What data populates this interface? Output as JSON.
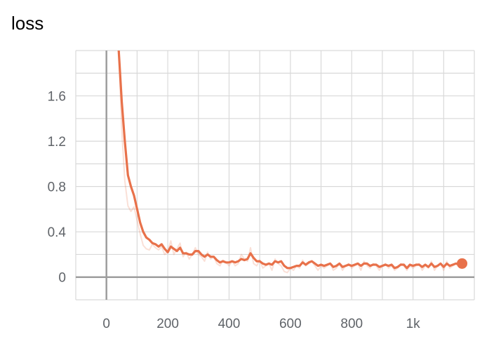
{
  "chart_data": {
    "type": "line",
    "title": "loss",
    "xlabel": "",
    "ylabel": "",
    "xlim": [
      -100,
      1200
    ],
    "ylim": [
      -0.2,
      2.0
    ],
    "x_ticks": [
      0,
      200,
      400,
      600,
      800,
      1000
    ],
    "x_tick_labels": [
      "0",
      "200",
      "400",
      "600",
      "800",
      "1k"
    ],
    "y_ticks": [
      0,
      0.4,
      0.8,
      1.2,
      1.6
    ],
    "y_tick_labels": [
      "0",
      "0.4",
      "0.8",
      "1.2",
      "1.6"
    ],
    "grid": true,
    "legend": "none",
    "series": [
      {
        "role": "raw",
        "color": "#e8714a",
        "x": [
          40,
          50,
          60,
          70,
          80,
          90,
          100,
          110,
          120,
          130,
          140,
          150,
          160,
          170,
          180,
          190,
          200,
          210,
          220,
          230,
          240,
          250,
          260,
          270,
          280,
          290,
          300,
          310,
          320,
          330,
          340,
          350,
          360,
          370,
          380,
          390,
          400,
          410,
          420,
          430,
          440,
          450,
          460,
          470,
          480,
          490,
          500,
          510,
          520,
          530,
          540,
          550,
          560,
          570,
          580,
          590,
          600,
          610,
          620,
          630,
          640,
          650,
          660,
          670,
          680,
          690,
          700,
          710,
          720,
          730,
          740,
          750,
          760,
          770,
          780,
          790,
          800,
          810,
          820,
          830,
          840,
          850,
          860,
          870,
          880,
          890,
          900,
          910,
          920,
          930,
          940,
          950,
          960,
          970,
          980,
          990,
          1000,
          1010,
          1020,
          1030,
          1040,
          1050,
          1060,
          1070,
          1080,
          1090,
          1100,
          1110,
          1120,
          1130,
          1140,
          1150,
          1160
        ],
        "y": [
          2.0,
          1.3,
          0.85,
          0.63,
          0.58,
          0.62,
          0.5,
          0.38,
          0.28,
          0.25,
          0.24,
          0.29,
          0.26,
          0.24,
          0.27,
          0.2,
          0.23,
          0.32,
          0.2,
          0.25,
          0.3,
          0.18,
          0.22,
          0.16,
          0.2,
          0.26,
          0.2,
          0.18,
          0.14,
          0.22,
          0.16,
          0.18,
          0.12,
          0.1,
          0.15,
          0.13,
          0.1,
          0.14,
          0.1,
          0.12,
          0.2,
          0.16,
          0.14,
          0.26,
          0.12,
          0.1,
          0.15,
          0.08,
          0.1,
          0.12,
          0.06,
          0.16,
          0.12,
          0.1,
          0.05,
          0.04,
          0.08,
          0.06,
          0.1,
          0.08,
          0.15,
          0.1,
          0.12,
          0.14,
          0.1,
          0.06,
          0.1,
          0.08,
          0.1,
          0.12,
          0.06,
          0.08,
          0.12,
          0.06,
          0.1,
          0.12,
          0.08,
          0.1,
          0.12,
          0.06,
          0.14,
          0.1,
          0.08,
          0.12,
          0.1,
          0.06,
          0.1,
          0.12,
          0.08,
          0.1,
          0.06,
          0.08,
          0.12,
          0.1,
          0.06,
          0.1,
          0.08,
          0.1,
          0.12,
          0.06,
          0.1,
          0.08,
          0.14,
          0.06,
          0.1,
          0.12,
          0.06,
          0.14,
          0.08,
          0.1,
          0.12,
          0.1,
          0.12
        ]
      },
      {
        "role": "smoothed",
        "color": "#e8714a",
        "x": [
          40,
          50,
          60,
          70,
          80,
          90,
          100,
          110,
          120,
          130,
          140,
          150,
          160,
          170,
          180,
          190,
          200,
          210,
          220,
          230,
          240,
          250,
          260,
          270,
          280,
          290,
          300,
          310,
          320,
          330,
          340,
          350,
          360,
          370,
          380,
          390,
          400,
          410,
          420,
          430,
          440,
          450,
          460,
          470,
          480,
          490,
          500,
          510,
          520,
          530,
          540,
          550,
          560,
          570,
          580,
          590,
          600,
          610,
          620,
          630,
          640,
          650,
          660,
          670,
          680,
          690,
          700,
          710,
          720,
          730,
          740,
          750,
          760,
          770,
          780,
          790,
          800,
          810,
          820,
          830,
          840,
          850,
          860,
          870,
          880,
          890,
          900,
          910,
          920,
          930,
          940,
          950,
          960,
          970,
          980,
          990,
          1000,
          1010,
          1020,
          1030,
          1040,
          1050,
          1060,
          1070,
          1080,
          1090,
          1100,
          1110,
          1120,
          1130,
          1140,
          1150,
          1160
        ],
        "y": [
          2.0,
          1.55,
          1.2,
          0.9,
          0.8,
          0.72,
          0.6,
          0.48,
          0.4,
          0.35,
          0.33,
          0.3,
          0.29,
          0.27,
          0.29,
          0.25,
          0.22,
          0.27,
          0.25,
          0.23,
          0.26,
          0.21,
          0.21,
          0.2,
          0.2,
          0.23,
          0.23,
          0.2,
          0.18,
          0.2,
          0.18,
          0.18,
          0.15,
          0.13,
          0.14,
          0.13,
          0.13,
          0.14,
          0.13,
          0.14,
          0.16,
          0.15,
          0.16,
          0.21,
          0.17,
          0.14,
          0.14,
          0.12,
          0.11,
          0.12,
          0.11,
          0.14,
          0.13,
          0.14,
          0.1,
          0.08,
          0.08,
          0.09,
          0.1,
          0.1,
          0.13,
          0.11,
          0.13,
          0.14,
          0.12,
          0.1,
          0.11,
          0.1,
          0.11,
          0.12,
          0.09,
          0.1,
          0.12,
          0.09,
          0.1,
          0.11,
          0.1,
          0.11,
          0.12,
          0.1,
          0.12,
          0.12,
          0.1,
          0.11,
          0.11,
          0.09,
          0.1,
          0.11,
          0.1,
          0.11,
          0.08,
          0.09,
          0.11,
          0.11,
          0.08,
          0.11,
          0.1,
          0.11,
          0.11,
          0.09,
          0.11,
          0.09,
          0.12,
          0.09,
          0.1,
          0.12,
          0.09,
          0.12,
          0.1,
          0.11,
          0.12,
          0.11,
          0.12
        ]
      }
    ],
    "last_point": {
      "x": 1160,
      "y": 0.12
    }
  }
}
